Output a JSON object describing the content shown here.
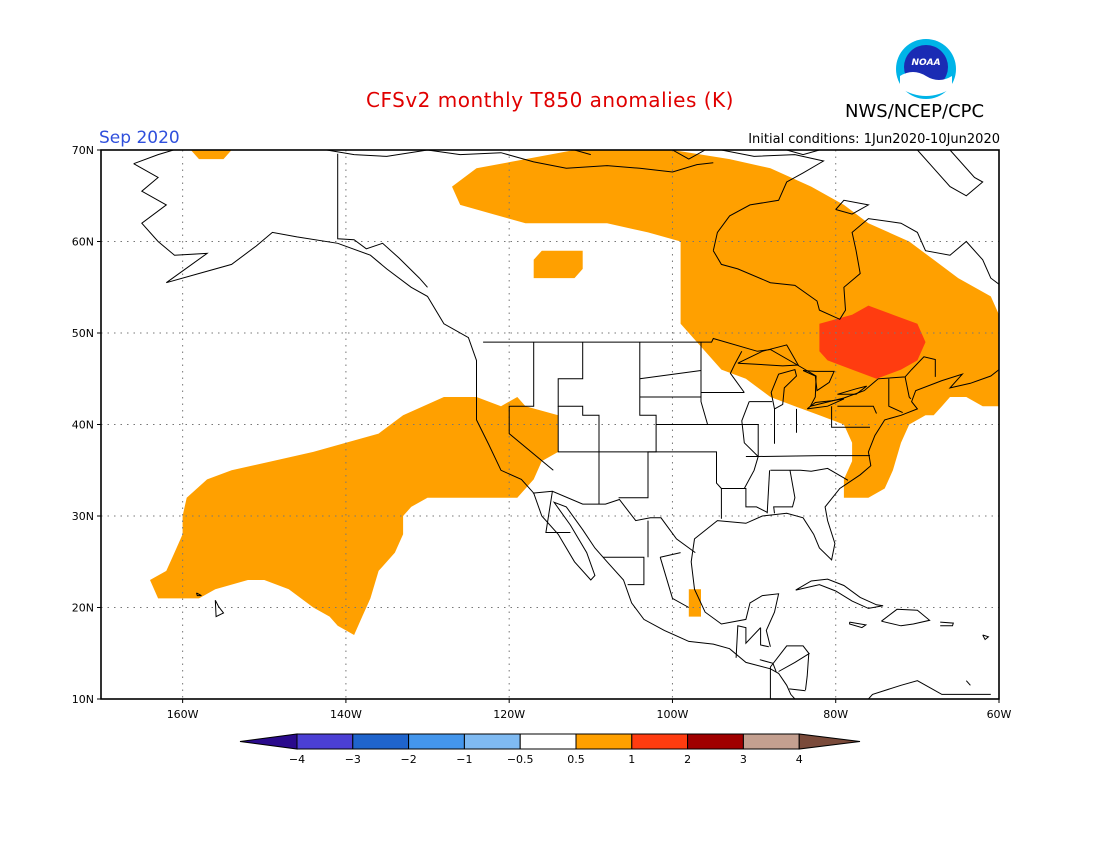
{
  "title": "CFSv2 monthly T850 anomalies (K)",
  "agency": "NWS/NCEP/CPC",
  "period": "Sep 2020",
  "initial_conditions": "Initial conditions: 1Jun2020-10Jun2020",
  "logo_text": "NOAA",
  "map": {
    "lon_range": [
      -170,
      -60
    ],
    "lat_range": [
      10,
      70
    ],
    "lat_ticks": [
      "70N",
      "60N",
      "50N",
      "40N",
      "30N",
      "20N",
      "10N"
    ],
    "lon_ticks": [
      "160W",
      "140W",
      "120W",
      "100W",
      "80W",
      "60W"
    ],
    "grid": true
  },
  "anomaly_regions": [
    {
      "name": "subtropical-pacific-warm",
      "level": "0.5-1",
      "polygon": [
        [
          -159.5,
          32
        ],
        [
          -157,
          34
        ],
        [
          -154,
          35
        ],
        [
          -149,
          36
        ],
        [
          -144,
          37
        ],
        [
          -140,
          38
        ],
        [
          -136,
          39
        ],
        [
          -133,
          41
        ],
        [
          -128,
          43
        ],
        [
          -124,
          43
        ],
        [
          -121,
          42
        ],
        [
          -119,
          43
        ],
        [
          -118,
          42
        ],
        [
          -114,
          41
        ],
        [
          -114,
          37
        ],
        [
          -116,
          36
        ],
        [
          -117,
          34
        ],
        [
          -119,
          32
        ],
        [
          -125,
          32
        ],
        [
          -128,
          32
        ],
        [
          -130,
          32
        ],
        [
          -132,
          31
        ],
        [
          -133,
          30
        ],
        [
          -133,
          28
        ],
        [
          -134,
          26
        ],
        [
          -136,
          24
        ],
        [
          -137,
          21
        ],
        [
          -138,
          19
        ],
        [
          -139,
          17
        ],
        [
          -141,
          18
        ],
        [
          -142,
          19
        ],
        [
          -144,
          20
        ],
        [
          -147,
          22
        ],
        [
          -150,
          23
        ],
        [
          -152,
          23
        ],
        [
          -156,
          22
        ],
        [
          -158,
          21
        ],
        [
          -161,
          21
        ],
        [
          -163,
          21
        ],
        [
          -164,
          23
        ],
        [
          -162,
          24
        ],
        [
          -161,
          26
        ],
        [
          -160,
          28
        ],
        [
          -160,
          30
        ]
      ]
    },
    {
      "name": "canada-east-warm",
      "level": "0.5-1",
      "polygon": [
        [
          -127,
          66
        ],
        [
          -124,
          68
        ],
        [
          -118,
          69
        ],
        [
          -112,
          70
        ],
        [
          -100,
          70
        ],
        [
          -93,
          69
        ],
        [
          -88,
          68
        ],
        [
          -83,
          66
        ],
        [
          -79,
          64
        ],
        [
          -76,
          62
        ],
        [
          -71,
          60
        ],
        [
          -68,
          58
        ],
        [
          -65,
          56
        ],
        [
          -61,
          54
        ],
        [
          -60,
          52
        ],
        [
          -60,
          42
        ],
        [
          -62,
          42
        ],
        [
          -64,
          43
        ],
        [
          -66,
          43
        ],
        [
          -67,
          42
        ],
        [
          -68,
          41
        ],
        [
          -69,
          41
        ],
        [
          -71,
          40
        ],
        [
          -72,
          38
        ],
        [
          -73,
          35
        ],
        [
          -74,
          33
        ],
        [
          -76,
          32
        ],
        [
          -79,
          32
        ],
        [
          -79,
          34
        ],
        [
          -78,
          36
        ],
        [
          -78,
          38
        ],
        [
          -79,
          40
        ],
        [
          -82,
          41
        ],
        [
          -85,
          42
        ],
        [
          -88,
          43
        ],
        [
          -91,
          45
        ],
        [
          -94,
          46
        ],
        [
          -96,
          48
        ],
        [
          -99,
          51
        ],
        [
          -99,
          55
        ],
        [
          -99,
          60
        ],
        [
          -103,
          61
        ],
        [
          -108,
          62
        ],
        [
          -113,
          62
        ],
        [
          -118,
          62
        ],
        [
          -122,
          63
        ],
        [
          -126,
          64
        ]
      ]
    },
    {
      "name": "hudson-bay-west-warm",
      "level": "0.5-1",
      "polygon": [
        [
          -117,
          58
        ],
        [
          -116,
          59
        ],
        [
          -111,
          59
        ],
        [
          -111,
          57
        ],
        [
          -112,
          56
        ],
        [
          -115,
          56
        ],
        [
          -117,
          56
        ]
      ]
    },
    {
      "name": "alaska-nw-warm",
      "level": "0.5-1",
      "polygon": [
        [
          -159,
          70
        ],
        [
          -158,
          69
        ],
        [
          -155,
          69
        ],
        [
          -154,
          70
        ]
      ]
    },
    {
      "name": "caribbean-warm",
      "level": "0.5-1",
      "polygon": [
        [
          -98,
          22
        ],
        [
          -96.5,
          22
        ],
        [
          -96.5,
          19
        ],
        [
          -98,
          19
        ]
      ]
    },
    {
      "name": "great-lakes-hot",
      "level": "1-2",
      "polygon": [
        [
          -82,
          51
        ],
        [
          -78,
          52
        ],
        [
          -76,
          53
        ],
        [
          -73,
          52
        ],
        [
          -70,
          51
        ],
        [
          -69,
          49
        ],
        [
          -70,
          47
        ],
        [
          -72,
          46
        ],
        [
          -75,
          45
        ],
        [
          -78,
          46
        ],
        [
          -81,
          47
        ],
        [
          -82,
          48
        ]
      ]
    }
  ],
  "colorbar": {
    "labels": [
      "−4",
      "−3",
      "−2",
      "−1",
      "−0.5",
      "0.5",
      "1",
      "2",
      "3",
      "4"
    ],
    "colors": [
      "#2a0a8c",
      "#4b3fd4",
      "#1f64cc",
      "#4496ec",
      "#7fbaf2",
      "#ffffff",
      "#ffa000",
      "#ff3c10",
      "#a00000",
      "#c4a090",
      "#7a4a3a"
    ]
  },
  "colors": {
    "land": "#000000",
    "warm": "#ffa000",
    "hot": "#ff3c10",
    "title": "#e00000",
    "month": "#2f4fdc"
  }
}
